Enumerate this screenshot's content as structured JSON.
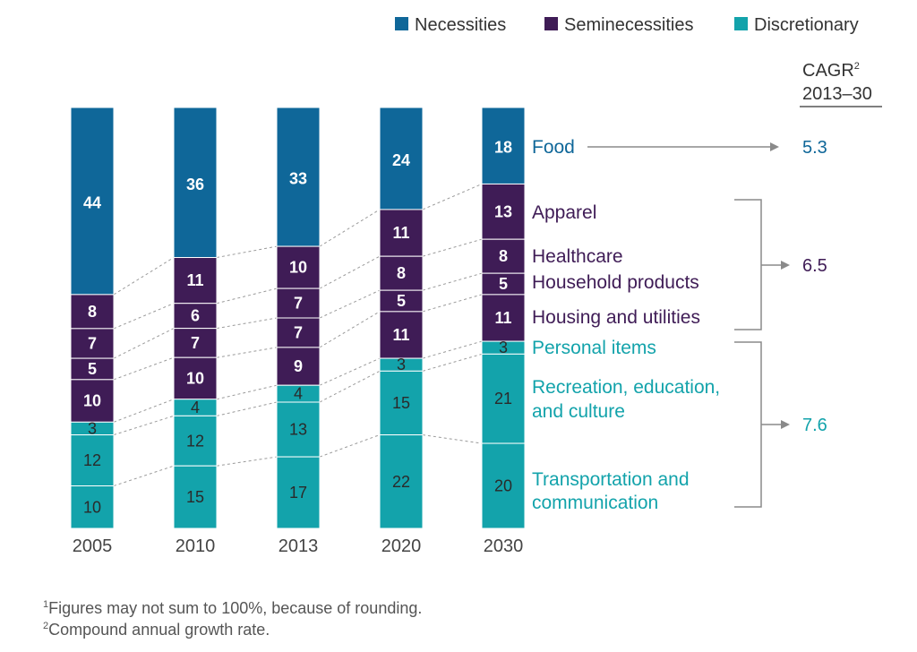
{
  "chart_data": {
    "type": "bar",
    "stacked": true,
    "categories": [
      "2005",
      "2010",
      "2013",
      "2020",
      "2030"
    ],
    "segments": [
      {
        "name": "Food",
        "group": "Necessities",
        "values": [
          44,
          36,
          33,
          24,
          18
        ]
      },
      {
        "name": "Apparel",
        "group": "Seminecessities",
        "values": [
          8,
          11,
          10,
          11,
          13
        ]
      },
      {
        "name": "Healthcare",
        "group": "Seminecessities",
        "values": [
          7,
          6,
          7,
          8,
          8
        ]
      },
      {
        "name": "Household products",
        "group": "Seminecessities",
        "values": [
          5,
          7,
          7,
          5,
          5
        ]
      },
      {
        "name": "Housing and utilities",
        "group": "Seminecessities",
        "values": [
          10,
          10,
          9,
          11,
          11
        ]
      },
      {
        "name": "Personal items",
        "group": "Discretionary",
        "values": [
          3,
          4,
          4,
          3,
          3
        ]
      },
      {
        "name": "Recreation, education, and culture",
        "group": "Discretionary",
        "values": [
          12,
          12,
          13,
          15,
          21
        ]
      },
      {
        "name": "Transportation and communication",
        "group": "Discretionary",
        "values": [
          10,
          15,
          17,
          22,
          20
        ]
      }
    ],
    "row_labels": [
      {
        "segment": 0,
        "lines": [
          "Food"
        ]
      },
      {
        "segment": 1,
        "lines": [
          "Apparel"
        ]
      },
      {
        "segment": 2,
        "lines": [
          "Healthcare"
        ]
      },
      {
        "segment": 3,
        "lines": [
          "Household products"
        ]
      },
      {
        "segment": 4,
        "lines": [
          "Housing and utilities"
        ]
      },
      {
        "segment": 5,
        "lines": [
          "Personal items"
        ]
      },
      {
        "segment": 6,
        "lines": [
          "Recreation, education,",
          "and culture"
        ]
      },
      {
        "segment": 7,
        "lines": [
          "Transportation and",
          "communication"
        ]
      }
    ],
    "legend": [
      {
        "name": "Necessities",
        "color": "#0f6799"
      },
      {
        "name": "Seminecessities",
        "color": "#3f1c56"
      },
      {
        "name": "Discretionary",
        "color": "#13a3ab"
      }
    ],
    "group_colors": {
      "Necessities": "#0f6799",
      "Seminecessities": "#3f1c56",
      "Discretionary": "#13a3ab"
    },
    "cagr": {
      "header_text": "CAGR",
      "header_sup": "2",
      "header_years": "2013–30",
      "values": [
        {
          "group": "Necessities",
          "value": "5.3"
        },
        {
          "group": "Seminecessities",
          "value": "6.5"
        },
        {
          "group": "Discretionary",
          "value": "7.6"
        }
      ]
    },
    "legend_position": "top-right",
    "grid": false
  },
  "footnotes": [
    {
      "sup": "1",
      "text": "Figures may not sum to 100%, because of rounding."
    },
    {
      "sup": "2",
      "text": "Compound annual growth rate."
    }
  ]
}
